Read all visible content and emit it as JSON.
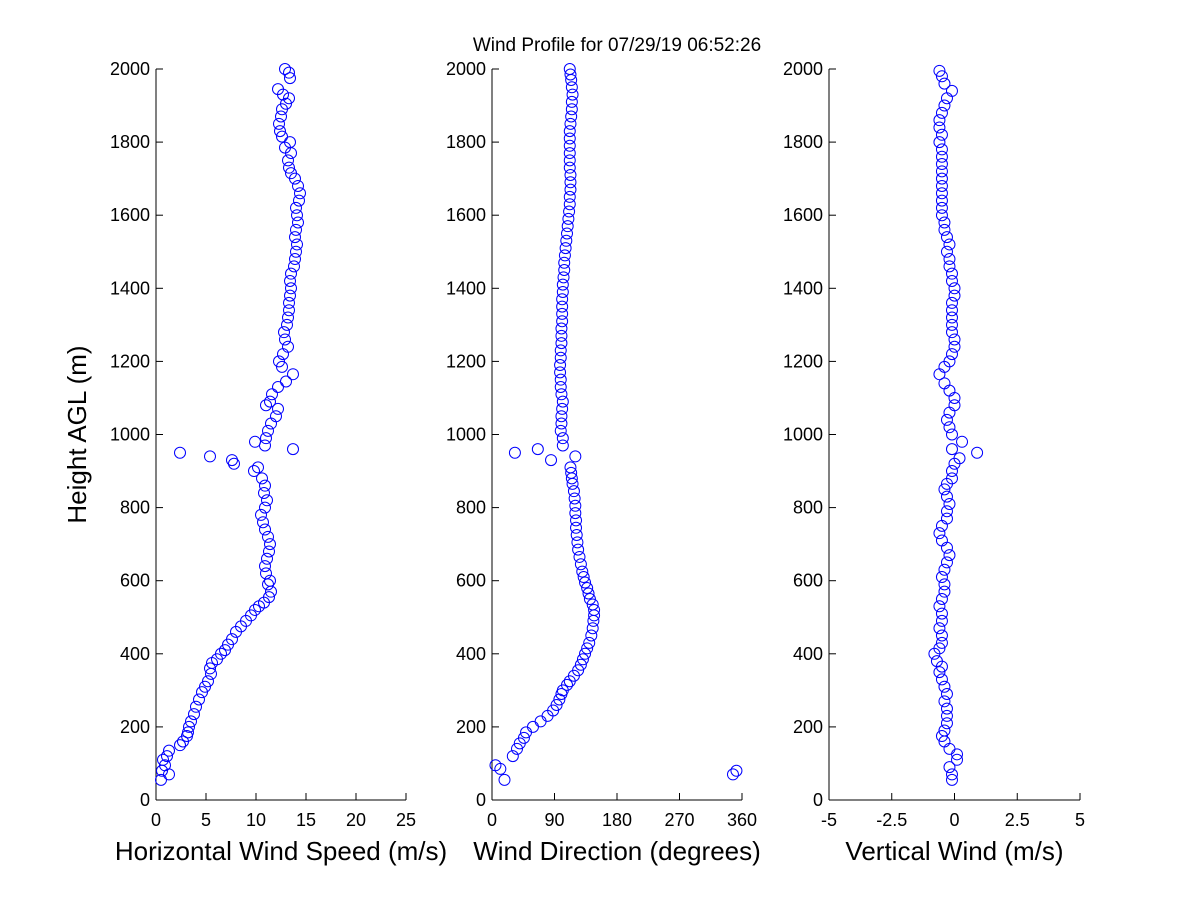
{
  "figure": {
    "title": "Wind Profile for  07/29/19 06:52:26"
  },
  "chart_data": [
    {
      "type": "scatter",
      "id": "speed",
      "xlabel": "Horizontal Wind Speed (m/s)",
      "ylabel": "Height AGL (m)",
      "xlim": [
        0,
        25
      ],
      "ylim": [
        0,
        2000
      ],
      "xticks": [
        "0",
        "5",
        "10",
        "15",
        "20",
        "25"
      ],
      "xtick_values": [
        0,
        5,
        10,
        15,
        20,
        25
      ],
      "yticks": [
        "0",
        "200",
        "400",
        "600",
        "800",
        "1000",
        "1200",
        "1400",
        "1600",
        "1800",
        "2000"
      ],
      "ytick_values": [
        0,
        200,
        400,
        600,
        800,
        1000,
        1200,
        1400,
        1600,
        1800,
        2000
      ],
      "color": "#0000ff",
      "points": [
        [
          0.5,
          55
        ],
        [
          1.3,
          70
        ],
        [
          0.6,
          80
        ],
        [
          0.9,
          95
        ],
        [
          0.7,
          110
        ],
        [
          1.1,
          120
        ],
        [
          1.3,
          135
        ],
        [
          2.4,
          150
        ],
        [
          2.7,
          160
        ],
        [
          3.1,
          175
        ],
        [
          3.2,
          185
        ],
        [
          3.3,
          200
        ],
        [
          3.5,
          215
        ],
        [
          3.8,
          235
        ],
        [
          4.0,
          255
        ],
        [
          4.3,
          275
        ],
        [
          4.6,
          295
        ],
        [
          4.9,
          310
        ],
        [
          5.2,
          325
        ],
        [
          5.5,
          345
        ],
        [
          5.4,
          360
        ],
        [
          5.6,
          375
        ],
        [
          6.1,
          385
        ],
        [
          6.5,
          400
        ],
        [
          6.9,
          410
        ],
        [
          7.2,
          425
        ],
        [
          7.6,
          440
        ],
        [
          8.0,
          460
        ],
        [
          8.5,
          475
        ],
        [
          9.0,
          490
        ],
        [
          9.5,
          505
        ],
        [
          9.9,
          520
        ],
        [
          10.3,
          530
        ],
        [
          10.8,
          540
        ],
        [
          11.3,
          555
        ],
        [
          11.5,
          570
        ],
        [
          11.2,
          590
        ],
        [
          11.4,
          600
        ],
        [
          11.0,
          620
        ],
        [
          10.9,
          640
        ],
        [
          11.1,
          660
        ],
        [
          11.3,
          680
        ],
        [
          11.4,
          700
        ],
        [
          11.2,
          720
        ],
        [
          10.9,
          740
        ],
        [
          10.7,
          760
        ],
        [
          10.5,
          780
        ],
        [
          10.9,
          800
        ],
        [
          11.1,
          820
        ],
        [
          10.8,
          840
        ],
        [
          10.9,
          860
        ],
        [
          10.6,
          880
        ],
        [
          9.8,
          900
        ],
        [
          10.2,
          910
        ],
        [
          7.8,
          920
        ],
        [
          7.6,
          930
        ],
        [
          5.4,
          940
        ],
        [
          2.4,
          950
        ],
        [
          13.7,
          960
        ],
        [
          10.9,
          970
        ],
        [
          9.9,
          980
        ],
        [
          11.0,
          990
        ],
        [
          11.2,
          1010
        ],
        [
          11.5,
          1030
        ],
        [
          12.0,
          1050
        ],
        [
          12.2,
          1070
        ],
        [
          11.0,
          1080
        ],
        [
          11.4,
          1090
        ],
        [
          11.6,
          1110
        ],
        [
          12.2,
          1130
        ],
        [
          13.0,
          1145
        ],
        [
          13.7,
          1165
        ],
        [
          12.6,
          1185
        ],
        [
          12.3,
          1200
        ],
        [
          12.7,
          1220
        ],
        [
          13.2,
          1240
        ],
        [
          12.9,
          1260
        ],
        [
          12.8,
          1280
        ],
        [
          13.1,
          1300
        ],
        [
          13.2,
          1320
        ],
        [
          13.3,
          1340
        ],
        [
          13.3,
          1360
        ],
        [
          13.4,
          1380
        ],
        [
          13.5,
          1400
        ],
        [
          13.4,
          1420
        ],
        [
          13.5,
          1440
        ],
        [
          13.8,
          1460
        ],
        [
          13.9,
          1480
        ],
        [
          14.0,
          1500
        ],
        [
          14.1,
          1520
        ],
        [
          13.9,
          1540
        ],
        [
          14.0,
          1560
        ],
        [
          14.2,
          1580
        ],
        [
          14.1,
          1600
        ],
        [
          14.0,
          1620
        ],
        [
          14.3,
          1640
        ],
        [
          14.4,
          1660
        ],
        [
          14.2,
          1680
        ],
        [
          13.9,
          1700
        ],
        [
          13.5,
          1715
        ],
        [
          13.3,
          1730
        ],
        [
          13.2,
          1750
        ],
        [
          13.5,
          1770
        ],
        [
          12.9,
          1785
        ],
        [
          13.4,
          1800
        ],
        [
          12.6,
          1815
        ],
        [
          12.4,
          1830
        ],
        [
          12.3,
          1850
        ],
        [
          12.5,
          1870
        ],
        [
          12.6,
          1890
        ],
        [
          13.0,
          1905
        ],
        [
          13.3,
          1920
        ],
        [
          12.7,
          1930
        ],
        [
          12.2,
          1945
        ],
        [
          13.4,
          1975
        ],
        [
          13.3,
          1990
        ],
        [
          12.9,
          2000
        ]
      ]
    },
    {
      "type": "scatter",
      "id": "direction",
      "xlabel": "Wind Direction (degrees)",
      "ylabel": "",
      "xlim": [
        0,
        360
      ],
      "ylim": [
        0,
        2000
      ],
      "xticks": [
        "0",
        "90",
        "180",
        "270",
        "360"
      ],
      "xtick_values": [
        0,
        90,
        180,
        270,
        360
      ],
      "yticks": [
        "0",
        "200",
        "400",
        "600",
        "800",
        "1000",
        "1200",
        "1400",
        "1600",
        "1800",
        "2000"
      ],
      "ytick_values": [
        0,
        200,
        400,
        600,
        800,
        1000,
        1200,
        1400,
        1600,
        1800,
        2000
      ],
      "color": "#0000ff",
      "points": [
        [
          18,
          55
        ],
        [
          12,
          85
        ],
        [
          5,
          95
        ],
        [
          347,
          70
        ],
        [
          352,
          80
        ],
        [
          30,
          120
        ],
        [
          36,
          140
        ],
        [
          40,
          155
        ],
        [
          46,
          170
        ],
        [
          49,
          185
        ],
        [
          59,
          200
        ],
        [
          70,
          215
        ],
        [
          80,
          230
        ],
        [
          88,
          245
        ],
        [
          93,
          260
        ],
        [
          97,
          275
        ],
        [
          100,
          290
        ],
        [
          102,
          300
        ],
        [
          108,
          315
        ],
        [
          112,
          325
        ],
        [
          118,
          340
        ],
        [
          124,
          355
        ],
        [
          128,
          370
        ],
        [
          131,
          385
        ],
        [
          134,
          400
        ],
        [
          137,
          415
        ],
        [
          140,
          430
        ],
        [
          143,
          450
        ],
        [
          145,
          470
        ],
        [
          146,
          490
        ],
        [
          147,
          505
        ],
        [
          147,
          520
        ],
        [
          145,
          535
        ],
        [
          141,
          550
        ],
        [
          139,
          565
        ],
        [
          137,
          580
        ],
        [
          134,
          595
        ],
        [
          132,
          610
        ],
        [
          130,
          625
        ],
        [
          128,
          645
        ],
        [
          126,
          665
        ],
        [
          124,
          685
        ],
        [
          123,
          705
        ],
        [
          122,
          725
        ],
        [
          121,
          745
        ],
        [
          121,
          765
        ],
        [
          120,
          785
        ],
        [
          120,
          805
        ],
        [
          119,
          825
        ],
        [
          118,
          845
        ],
        [
          116,
          865
        ],
        [
          115,
          880
        ],
        [
          114,
          895
        ],
        [
          113,
          910
        ],
        [
          120,
          940
        ],
        [
          66,
          960
        ],
        [
          33,
          950
        ],
        [
          85,
          930
        ],
        [
          102,
          970
        ],
        [
          102,
          990
        ],
        [
          99,
          1010
        ],
        [
          100,
          1030
        ],
        [
          100,
          1050
        ],
        [
          101,
          1070
        ],
        [
          102,
          1090
        ],
        [
          100,
          1110
        ],
        [
          99,
          1130
        ],
        [
          99,
          1150
        ],
        [
          98,
          1170
        ],
        [
          98,
          1190
        ],
        [
          99,
          1210
        ],
        [
          99,
          1230
        ],
        [
          100,
          1250
        ],
        [
          100,
          1270
        ],
        [
          100,
          1290
        ],
        [
          101,
          1310
        ],
        [
          101,
          1330
        ],
        [
          101,
          1350
        ],
        [
          101,
          1370
        ],
        [
          102,
          1390
        ],
        [
          102,
          1410
        ],
        [
          103,
          1430
        ],
        [
          104,
          1450
        ],
        [
          104,
          1470
        ],
        [
          105,
          1490
        ],
        [
          106,
          1510
        ],
        [
          107,
          1530
        ],
        [
          108,
          1550
        ],
        [
          109,
          1570
        ],
        [
          110,
          1590
        ],
        [
          111,
          1610
        ],
        [
          112,
          1630
        ],
        [
          112,
          1650
        ],
        [
          113,
          1670
        ],
        [
          113,
          1690
        ],
        [
          113,
          1710
        ],
        [
          112,
          1730
        ],
        [
          112,
          1750
        ],
        [
          112,
          1770
        ],
        [
          112,
          1790
        ],
        [
          112,
          1810
        ],
        [
          112,
          1830
        ],
        [
          113,
          1850
        ],
        [
          114,
          1870
        ],
        [
          115,
          1890
        ],
        [
          115,
          1910
        ],
        [
          116,
          1930
        ],
        [
          115,
          1950
        ],
        [
          114,
          1970
        ],
        [
          113,
          1985
        ],
        [
          112,
          2000
        ]
      ]
    },
    {
      "type": "scatter",
      "id": "vertical",
      "xlabel": "Vertical Wind (m/s)",
      "ylabel": "",
      "xlim": [
        -5,
        5
      ],
      "ylim": [
        0,
        2000
      ],
      "xticks": [
        "-5",
        "-2.5",
        "0",
        "2.5",
        "5"
      ],
      "xtick_values": [
        -5,
        -2.5,
        0,
        2.5,
        5
      ],
      "yticks": [
        "0",
        "200",
        "400",
        "600",
        "800",
        "1000",
        "1200",
        "1400",
        "1600",
        "1800",
        "2000"
      ],
      "ytick_values": [
        0,
        200,
        400,
        600,
        800,
        1000,
        1200,
        1400,
        1600,
        1800,
        2000
      ],
      "color": "#0000ff",
      "points": [
        [
          -0.1,
          55
        ],
        [
          -0.1,
          70
        ],
        [
          -0.2,
          90
        ],
        [
          0.1,
          110
        ],
        [
          0.1,
          125
        ],
        [
          -0.2,
          140
        ],
        [
          -0.4,
          160
        ],
        [
          -0.5,
          175
        ],
        [
          -0.4,
          190
        ],
        [
          -0.3,
          210
        ],
        [
          -0.3,
          230
        ],
        [
          -0.3,
          250
        ],
        [
          -0.4,
          270
        ],
        [
          -0.3,
          290
        ],
        [
          -0.4,
          310
        ],
        [
          -0.5,
          330
        ],
        [
          -0.6,
          350
        ],
        [
          -0.5,
          365
        ],
        [
          -0.7,
          380
        ],
        [
          -0.8,
          400
        ],
        [
          -0.6,
          415
        ],
        [
          -0.5,
          430
        ],
        [
          -0.5,
          450
        ],
        [
          -0.6,
          470
        ],
        [
          -0.5,
          490
        ],
        [
          -0.5,
          510
        ],
        [
          -0.6,
          530
        ],
        [
          -0.5,
          550
        ],
        [
          -0.4,
          570
        ],
        [
          -0.4,
          590
        ],
        [
          -0.5,
          610
        ],
        [
          -0.4,
          630
        ],
        [
          -0.3,
          650
        ],
        [
          -0.2,
          670
        ],
        [
          -0.3,
          690
        ],
        [
          -0.5,
          710
        ],
        [
          -0.6,
          730
        ],
        [
          -0.5,
          750
        ],
        [
          -0.3,
          770
        ],
        [
          -0.3,
          790
        ],
        [
          -0.2,
          810
        ],
        [
          -0.3,
          830
        ],
        [
          -0.4,
          850
        ],
        [
          -0.3,
          865
        ],
        [
          -0.1,
          880
        ],
        [
          -0.1,
          900
        ],
        [
          0.0,
          920
        ],
        [
          0.2,
          935
        ],
        [
          0.9,
          950
        ],
        [
          -0.1,
          960
        ],
        [
          0.3,
          980
        ],
        [
          -0.1,
          1000
        ],
        [
          -0.2,
          1020
        ],
        [
          -0.3,
          1040
        ],
        [
          -0.2,
          1060
        ],
        [
          0.0,
          1080
        ],
        [
          0.0,
          1100
        ],
        [
          -0.2,
          1120
        ],
        [
          -0.4,
          1140
        ],
        [
          -0.6,
          1165
        ],
        [
          -0.4,
          1185
        ],
        [
          -0.2,
          1200
        ],
        [
          -0.1,
          1220
        ],
        [
          0.0,
          1240
        ],
        [
          0.0,
          1260
        ],
        [
          -0.1,
          1280
        ],
        [
          -0.1,
          1300
        ],
        [
          -0.1,
          1320
        ],
        [
          -0.1,
          1340
        ],
        [
          -0.1,
          1360
        ],
        [
          0.0,
          1380
        ],
        [
          0.0,
          1400
        ],
        [
          -0.1,
          1420
        ],
        [
          -0.1,
          1440
        ],
        [
          -0.2,
          1460
        ],
        [
          -0.2,
          1480
        ],
        [
          -0.3,
          1500
        ],
        [
          -0.2,
          1520
        ],
        [
          -0.3,
          1540
        ],
        [
          -0.4,
          1560
        ],
        [
          -0.4,
          1580
        ],
        [
          -0.5,
          1600
        ],
        [
          -0.5,
          1620
        ],
        [
          -0.5,
          1640
        ],
        [
          -0.5,
          1660
        ],
        [
          -0.5,
          1680
        ],
        [
          -0.5,
          1700
        ],
        [
          -0.5,
          1720
        ],
        [
          -0.5,
          1740
        ],
        [
          -0.5,
          1760
        ],
        [
          -0.5,
          1780
        ],
        [
          -0.6,
          1800
        ],
        [
          -0.5,
          1820
        ],
        [
          -0.6,
          1840
        ],
        [
          -0.6,
          1860
        ],
        [
          -0.5,
          1880
        ],
        [
          -0.4,
          1900
        ],
        [
          -0.3,
          1920
        ],
        [
          -0.1,
          1940
        ],
        [
          -0.4,
          1960
        ],
        [
          -0.5,
          1980
        ],
        [
          -0.6,
          1995
        ]
      ]
    }
  ]
}
